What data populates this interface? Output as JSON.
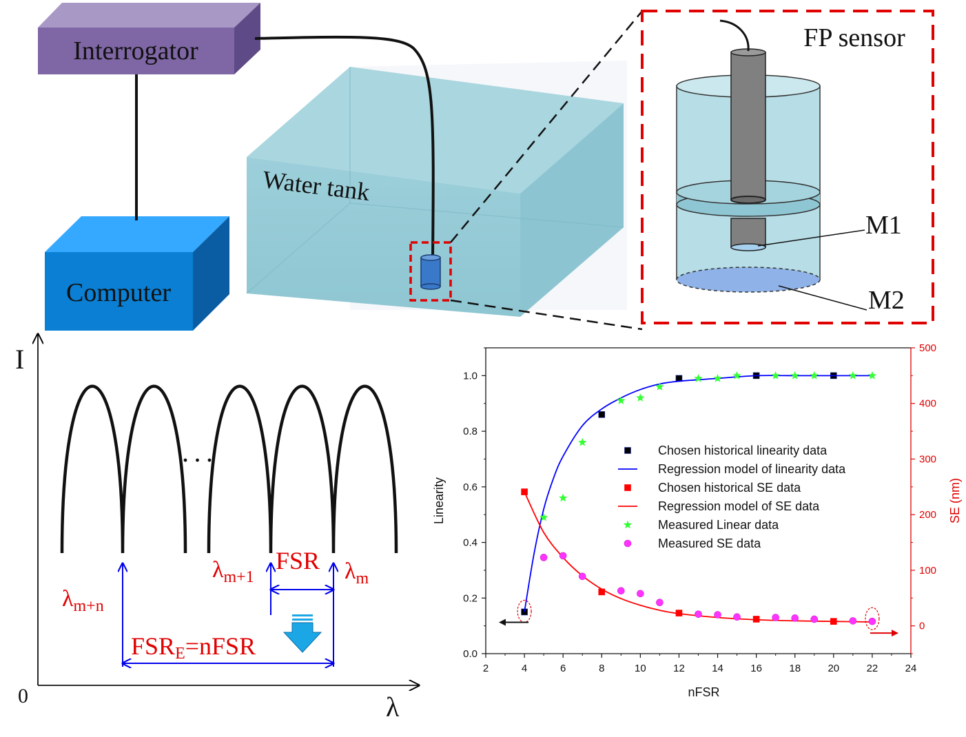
{
  "setup": {
    "interrogator_label": "Interrogator",
    "computer_label": "Computer",
    "tank_label": "Water tank",
    "sensor_title": "FP sensor",
    "mirror1_label": "M1",
    "mirror2_label": "M2"
  },
  "spectrum": {
    "y_axis_label": "I",
    "x_axis_label": "λ",
    "origin_label": "0",
    "ellipsis": "· · ·",
    "lambda_m_n_main": "λ",
    "lambda_m_n_sub": "m+n",
    "lambda_m1_main": "λ",
    "lambda_m1_sub": "m+1",
    "lambda_m_main": "λ",
    "lambda_m_sub": "m",
    "fsr_label": "FSR",
    "fsre_prefix": "FSR",
    "fsre_sub": "E",
    "fsre_suffix": "=nFSR"
  },
  "chart_data": {
    "type": "scatter",
    "xlabel": "nFSR",
    "ylabel": "Linearity",
    "y2label": "SE (nm)",
    "xlim": [
      2,
      24
    ],
    "ylim": [
      0.0,
      1.1
    ],
    "y2lim": [
      -50,
      500
    ],
    "x_ticks": [
      "2",
      "4",
      "6",
      "8",
      "10",
      "12",
      "14",
      "16",
      "18",
      "20",
      "22",
      "24"
    ],
    "y_ticks": [
      "0.0",
      "0.2",
      "0.4",
      "0.6",
      "0.8",
      "1.0"
    ],
    "y2_ticks": [
      "0",
      "100",
      "200",
      "300",
      "400",
      "500"
    ],
    "legend_position": "center-right",
    "series": [
      {
        "name": "Chosen historical linearity data",
        "axis": "left",
        "marker": "square",
        "color": "#000000",
        "x": [
          4,
          8,
          12,
          16,
          20
        ],
        "y": [
          0.15,
          0.86,
          0.99,
          1.0,
          1.0
        ]
      },
      {
        "name": "Regression model of linearity data",
        "axis": "left",
        "marker": "line",
        "color": "#0000ff",
        "x": [
          4,
          4.5,
          5,
          5.5,
          6,
          7,
          8,
          9,
          10,
          11,
          12,
          14,
          16,
          18,
          20,
          22
        ],
        "y": [
          0.15,
          0.36,
          0.52,
          0.63,
          0.71,
          0.82,
          0.88,
          0.92,
          0.95,
          0.97,
          0.98,
          0.99,
          1.0,
          1.0,
          1.0,
          1.0
        ]
      },
      {
        "name": "Chosen historical SE data",
        "axis": "right",
        "marker": "square",
        "color": "#ff0000",
        "x": [
          4,
          8,
          12,
          16,
          20
        ],
        "y": [
          241,
          61,
          23,
          12,
          8
        ]
      },
      {
        "name": "Regression model of SE data",
        "axis": "right",
        "marker": "line",
        "color": "#ff0000",
        "x": [
          4,
          5,
          6,
          7,
          8,
          9,
          10,
          11,
          12,
          14,
          16,
          18,
          20,
          22
        ],
        "y": [
          241,
          168,
          123,
          90,
          66,
          49,
          37,
          28,
          22,
          15,
          11,
          9,
          8,
          7
        ]
      },
      {
        "name": "Measured Linear data",
        "axis": "left",
        "marker": "star",
        "color": "#33ff33",
        "x": [
          5,
          6,
          7,
          9,
          10,
          11,
          13,
          14,
          15,
          17,
          18,
          19,
          21,
          22
        ],
        "y": [
          0.49,
          0.56,
          0.76,
          0.91,
          0.92,
          0.96,
          0.99,
          0.99,
          1.0,
          1.0,
          1.0,
          1.0,
          1.0,
          1.0
        ]
      },
      {
        "name": "Measured SE data",
        "axis": "right",
        "marker": "circle",
        "color": "#ff33ff",
        "x": [
          5,
          6,
          7,
          9,
          10,
          11,
          13,
          14,
          15,
          17,
          18,
          19,
          21,
          22
        ],
        "y": [
          123,
          126,
          89,
          63,
          58,
          42,
          21,
          20,
          16,
          15,
          14,
          12,
          9,
          8
        ]
      }
    ]
  }
}
